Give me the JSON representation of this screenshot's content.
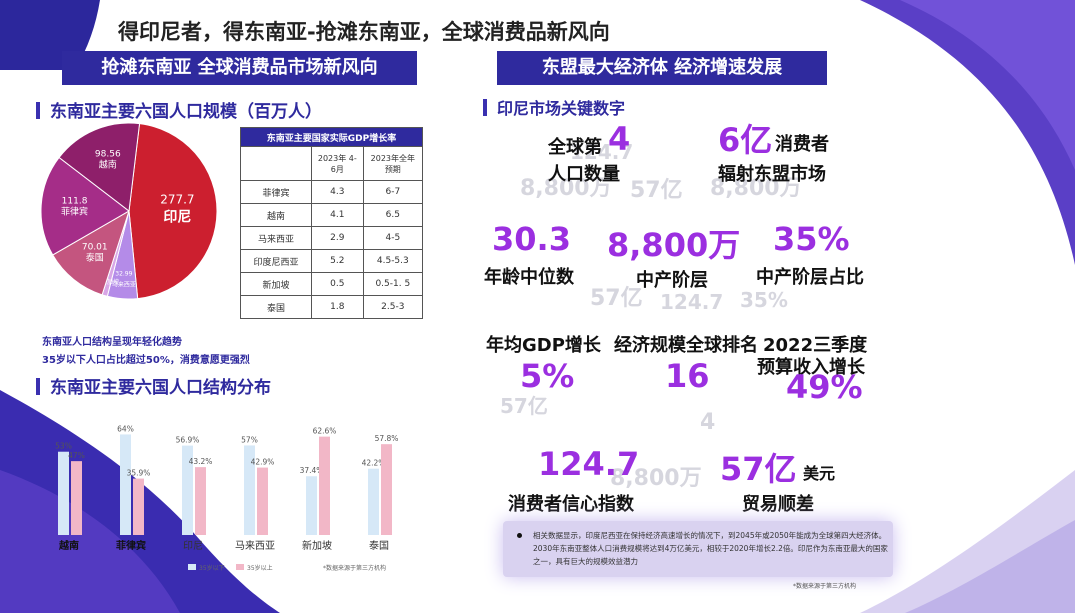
{
  "page_title": "得印尼者，得东南亚-抢滩东南亚，全球消费品新风向",
  "left_header": "抢滩东南亚 全球消费品市场新风向",
  "right_header": "东盟最大经济体 经济增速发展",
  "pop_section_title": "东南亚主要六国人口规模（百万人）",
  "pie": {
    "slices": [
      {
        "name": "印尼",
        "value": "277.7",
        "num": 277.7,
        "color": "#cc1f2f"
      },
      {
        "name": "马来西亚",
        "value": "32.99",
        "num": 32.99,
        "color": "#b48be8"
      },
      {
        "name": "新加坡",
        "value": "",
        "num": 5.9,
        "color": "#d8a6e6"
      },
      {
        "name": "泰国",
        "value": "70.01",
        "num": 70.01,
        "color": "#c4557f"
      },
      {
        "name": "菲律宾",
        "value": "111.8",
        "num": 111.8,
        "color": "#a52d88"
      },
      {
        "name": "越南",
        "value": "98.56",
        "num": 98.56,
        "color": "#8e1f6a"
      }
    ]
  },
  "gdp_table": {
    "caption": "东南亚主要国家实际GDP增长率",
    "header": [
      "",
      "2023年 4-6月",
      "2023年全年 预期"
    ],
    "rows": [
      [
        "菲律宾",
        "4.3",
        "6-7"
      ],
      [
        "越南",
        "4.1",
        "6.5"
      ],
      [
        "马来西亚",
        "2.9",
        "4-5"
      ],
      [
        "印度尼西亚",
        "5.2",
        "4.5-5.3"
      ],
      [
        "新加坡",
        "0.5",
        "0.5-1. 5"
      ],
      [
        "泰国",
        "1.8",
        "2.5-3"
      ]
    ]
  },
  "notes": {
    "line1": "东南亚人口结构呈现年轻化趋势",
    "line2": "35岁以下人口占比超过50%，消费意愿更强烈"
  },
  "struct_section_title": "东南亚主要六国人口结构分布",
  "chart_data": {
    "type": "bar",
    "categories": [
      "越南",
      "菲律宾",
      "印尼",
      "马来西亚",
      "新加坡",
      "泰国"
    ],
    "series": [
      {
        "name": "35岁以下",
        "values": [
          53,
          64,
          56.9,
          57,
          37.4,
          42.2
        ],
        "color": "#d6e8f7"
      },
      {
        "name": "35岁以上",
        "values": [
          47,
          35.9,
          43.2,
          42.9,
          62.6,
          57.8
        ],
        "color": "#f2b7c7"
      }
    ],
    "value_labels": [
      [
        "53%",
        "64%",
        "56.9%",
        "57%",
        "37.4%",
        "42.2%"
      ],
      [
        "47%",
        "35.9%",
        "43.2%",
        "42.9%",
        "62.6%",
        "57.8%"
      ]
    ],
    "ylim": [
      0,
      70
    ],
    "legend_position": "bottom-left",
    "source": "*数据来源于第三方机构"
  },
  "indonesia_title": "印尼市场关键数字",
  "stats": [
    {
      "num": "4",
      "label_a": "全球第",
      "label_b": "人口数量"
    },
    {
      "num": "6亿",
      "label_a": "消费者",
      "label_b": "辐射东盟市场"
    },
    {
      "num": "30.3",
      "label": "年龄中位数"
    },
    {
      "num": "8,800万",
      "label": "中产阶层"
    },
    {
      "num": "35%",
      "label": "中产阶层占比"
    },
    {
      "num": "5%",
      "label": "年均GDP增长"
    },
    {
      "num": "16",
      "label": "经济规模全球排名"
    },
    {
      "num": "49%",
      "label_a": "2022三季度",
      "label_b": "预算收入增长"
    },
    {
      "num": "124.7",
      "label": "消费者信心指数"
    },
    {
      "num": "57亿",
      "unit": "美元",
      "label": "贸易顺差"
    }
  ],
  "bottom_note": "相关数据显示，印度尼西亚在保持经济高速增长的情况下，到2045年或2050年能成为全球第四大经济体。2030年东南亚整体人口消费规模将达到4万亿美元，相较于2020年增长2.2倍。印尼作为东南亚最大的国家之一，具有巨大的规模效益潜力",
  "right_source": "*数据来源于第三方机构",
  "colors": {
    "brand": "#2f2a9e",
    "accent": "#9b2fe0",
    "indonesia_red": "#cc1f2f"
  }
}
